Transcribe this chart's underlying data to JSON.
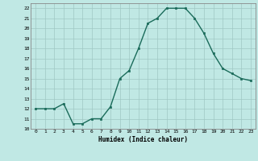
{
  "x": [
    0,
    1,
    2,
    3,
    4,
    5,
    6,
    7,
    8,
    9,
    10,
    11,
    12,
    13,
    14,
    15,
    16,
    17,
    18,
    19,
    20,
    21,
    22,
    23
  ],
  "y": [
    12,
    12,
    12,
    12.5,
    10.5,
    10.5,
    11,
    11,
    12.2,
    15,
    15.8,
    18,
    20.5,
    21,
    22,
    22,
    22,
    21,
    19.5,
    17.5,
    16,
    15.5,
    15,
    14.8
  ],
  "line_color": "#1a6b5a",
  "marker_color": "#1a6b5a",
  "bg_color": "#c0e8e4",
  "grid_color": "#a0c8c4",
  "xlabel": "Humidex (Indice chaleur)",
  "xlim": [
    -0.5,
    23.5
  ],
  "ylim": [
    10,
    22.5
  ],
  "yticks": [
    10,
    11,
    12,
    13,
    14,
    15,
    16,
    17,
    18,
    19,
    20,
    21,
    22
  ],
  "xticks": [
    0,
    1,
    2,
    3,
    4,
    5,
    6,
    7,
    8,
    9,
    10,
    11,
    12,
    13,
    14,
    15,
    16,
    17,
    18,
    19,
    20,
    21,
    22,
    23
  ],
  "xtick_labels": [
    "0",
    "1",
    "2",
    "3",
    "4",
    "5",
    "6",
    "7",
    "8",
    "9",
    "10",
    "11",
    "12",
    "13",
    "14",
    "15",
    "16",
    "17",
    "18",
    "19",
    "20",
    "21",
    "22",
    "23"
  ]
}
